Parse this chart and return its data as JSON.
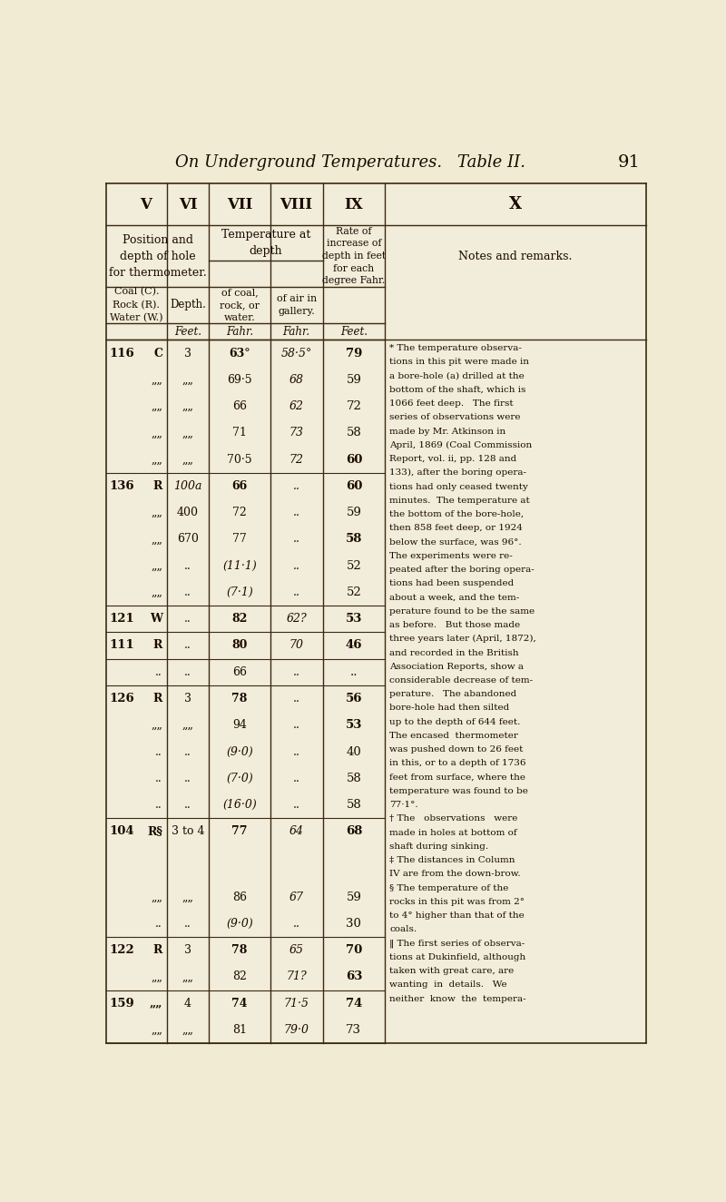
{
  "page_title": "On Underground Temperatures.",
  "page_subtitle": "Table II.",
  "page_num": "91",
  "bg_color": "#f0ebd2",
  "table_bg": "#f2ecda",
  "border_color": "#3a2a10",
  "rows": [
    [
      "116",
      "C",
      "3",
      "63°",
      "58·5°",
      "79"
    ],
    [
      "",
      "„„",
      "„„",
      "69·5",
      "68",
      "59"
    ],
    [
      "",
      "„„",
      "„„",
      "66",
      "62",
      "72"
    ],
    [
      "",
      "„„",
      "„„",
      "71",
      "73",
      "58"
    ],
    [
      "",
      "„„",
      "„„",
      "70·5",
      "72",
      "60"
    ],
    [
      "136",
      "R",
      "100a",
      "66",
      "..",
      "60"
    ],
    [
      "",
      "„„",
      "400",
      "72",
      "..",
      "59"
    ],
    [
      "",
      "„„",
      "670",
      "77",
      "..",
      "58"
    ],
    [
      "",
      "„„",
      "..",
      "(11·1)",
      "..",
      "52"
    ],
    [
      "",
      "„„",
      "..",
      "(7·1)",
      "..",
      "52"
    ],
    [
      "121",
      "W",
      "..",
      "82",
      "62?",
      "53"
    ],
    [
      "111",
      "R",
      "..",
      "80",
      "70",
      "46"
    ],
    [
      "",
      "..",
      "..",
      "66",
      "..",
      ".."
    ],
    [
      "126",
      "R",
      "3",
      "78",
      "..",
      "56"
    ],
    [
      "",
      "„„",
      "„„",
      "94",
      "..",
      "53"
    ],
    [
      "",
      "..",
      "..",
      "(9·0)",
      "..",
      "40"
    ],
    [
      "",
      "..",
      "..",
      "(7·0)",
      "..",
      "58"
    ],
    [
      "",
      "..",
      "..",
      "(16·0)",
      "..",
      "58"
    ],
    [
      "104",
      "R§",
      "3 to 4",
      "77",
      "64",
      "68"
    ],
    [
      "",
      "„„",
      "„„",
      "86",
      "67",
      "59"
    ],
    [
      "",
      "..",
      "..",
      "(9·0)",
      "..",
      "30"
    ],
    [
      "122",
      "R",
      "3",
      "78",
      "65",
      "70"
    ],
    [
      "",
      "„„",
      "„„",
      "82",
      "71?",
      "63"
    ],
    [
      "159",
      "„„",
      "4",
      "74",
      "71·5",
      "74"
    ],
    [
      "",
      "„„",
      "„„",
      "81",
      "79·0",
      "73"
    ]
  ],
  "bold_col5_rows": [
    0,
    4,
    5,
    7,
    10,
    11,
    13,
    14,
    18,
    21,
    22,
    23
  ],
  "bold_col6_rows": [
    0,
    4,
    5,
    7,
    10,
    11,
    13,
    14,
    18,
    21,
    22,
    23
  ],
  "notes_lines": [
    "* The temperature observa-",
    "tions in this pit were made in",
    "a bore-hole (a) drilled at the",
    "bottom of the shaft, which is",
    "1066 feet deep.   The first",
    "series of observations were",
    "made by Mr. Atkinson in",
    "April, 1869 (Coal Commission",
    "Report, vol. ii, pp. 128 and",
    "133), after the boring opera-",
    "tions had only ceased twenty",
    "minutes.  The temperature at",
    "the bottom of the bore-hole,",
    "then 858 feet deep, or 1924",
    "below the surface, was 96°.",
    "The experiments were re-",
    "peated after the boring opera-",
    "tions had been suspended",
    "about a week, and the tem-",
    "perature found to be the same",
    "as before.   But those made",
    "three years later (April, 1872),",
    "and recorded in the British",
    "Association Reports, show a",
    "considerable decrease of tem-",
    "perature.   The abandoned",
    "bore-hole had then silted",
    "up to the depth of 644 feet.",
    "The encased  thermometer",
    "was pushed down to 26 feet",
    "in this, or to a depth of 1736",
    "feet from surface, where the",
    "temperature was found to be",
    "77·1°.",
    "† The   observations   were",
    "made in holes at bottom of",
    "shaft during sinking.",
    "‡ The distances in Column",
    "IV are from the down-brow.",
    "§ The temperature of the",
    "rocks in this pit was from 2°",
    "to 4° higher than that of the",
    "coals.",
    "‖ The first series of observa-",
    "tions at Dukinfield, although",
    "taken with great care, are",
    "wanting  in  details.   We",
    "neither  know  the  tempera-"
  ]
}
